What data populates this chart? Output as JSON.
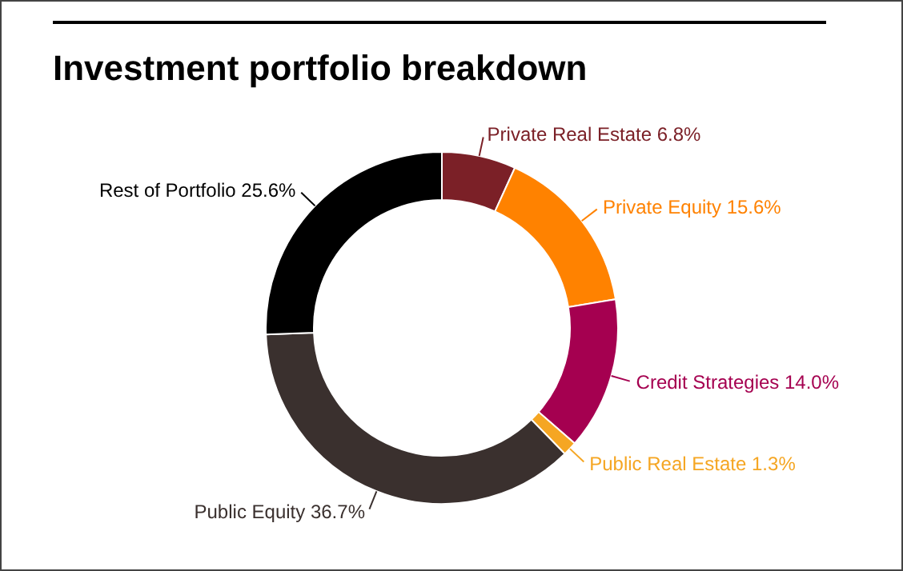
{
  "chart_data": {
    "type": "donut",
    "title": "Investment portfolio breakdown",
    "categories": [
      "Private Real Estate",
      "Private Equity",
      "Credit Strategies",
      "Public Real Estate",
      "Public Equity",
      "Rest of Portfolio"
    ],
    "values": [
      6.8,
      15.6,
      14.0,
      1.3,
      36.7,
      25.6
    ],
    "colors": [
      "#7b2027",
      "#ff8200",
      "#a50050",
      "#f5a623",
      "#3a302e",
      "#000000"
    ],
    "value_labels": [
      "6.8%",
      "15.6%",
      "14.0%",
      "1.3%",
      "36.7%",
      "25.6%"
    ]
  }
}
